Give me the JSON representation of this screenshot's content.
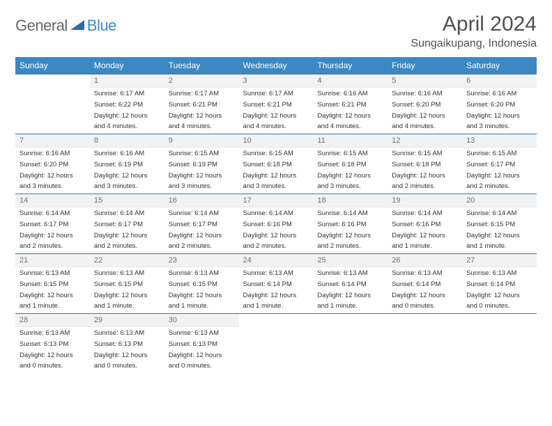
{
  "logo": {
    "part1": "General",
    "part2": "Blue"
  },
  "title": "April 2024",
  "location": "Sungaikupang, Indonesia",
  "header_bg": "#3b88c3",
  "header_fg": "#ffffff",
  "rule_color": "#3b76a8",
  "daybar_bg": "#f1f2f3",
  "days": [
    "Sunday",
    "Monday",
    "Tuesday",
    "Wednesday",
    "Thursday",
    "Friday",
    "Saturday"
  ],
  "weeks": [
    [
      {
        "n": "",
        "sunrise": "",
        "sunset": "",
        "daylight1": "",
        "daylight2": "",
        "empty": true
      },
      {
        "n": "1",
        "sunrise": "Sunrise: 6:17 AM",
        "sunset": "Sunset: 6:22 PM",
        "daylight1": "Daylight: 12 hours",
        "daylight2": "and 4 minutes."
      },
      {
        "n": "2",
        "sunrise": "Sunrise: 6:17 AM",
        "sunset": "Sunset: 6:21 PM",
        "daylight1": "Daylight: 12 hours",
        "daylight2": "and 4 minutes."
      },
      {
        "n": "3",
        "sunrise": "Sunrise: 6:17 AM",
        "sunset": "Sunset: 6:21 PM",
        "daylight1": "Daylight: 12 hours",
        "daylight2": "and 4 minutes."
      },
      {
        "n": "4",
        "sunrise": "Sunrise: 6:16 AM",
        "sunset": "Sunset: 6:21 PM",
        "daylight1": "Daylight: 12 hours",
        "daylight2": "and 4 minutes."
      },
      {
        "n": "5",
        "sunrise": "Sunrise: 6:16 AM",
        "sunset": "Sunset: 6:20 PM",
        "daylight1": "Daylight: 12 hours",
        "daylight2": "and 4 minutes."
      },
      {
        "n": "6",
        "sunrise": "Sunrise: 6:16 AM",
        "sunset": "Sunset: 6:20 PM",
        "daylight1": "Daylight: 12 hours",
        "daylight2": "and 3 minutes."
      }
    ],
    [
      {
        "n": "7",
        "sunrise": "Sunrise: 6:16 AM",
        "sunset": "Sunset: 6:20 PM",
        "daylight1": "Daylight: 12 hours",
        "daylight2": "and 3 minutes."
      },
      {
        "n": "8",
        "sunrise": "Sunrise: 6:16 AM",
        "sunset": "Sunset: 6:19 PM",
        "daylight1": "Daylight: 12 hours",
        "daylight2": "and 3 minutes."
      },
      {
        "n": "9",
        "sunrise": "Sunrise: 6:15 AM",
        "sunset": "Sunset: 6:19 PM",
        "daylight1": "Daylight: 12 hours",
        "daylight2": "and 3 minutes."
      },
      {
        "n": "10",
        "sunrise": "Sunrise: 6:15 AM",
        "sunset": "Sunset: 6:18 PM",
        "daylight1": "Daylight: 12 hours",
        "daylight2": "and 3 minutes."
      },
      {
        "n": "11",
        "sunrise": "Sunrise: 6:15 AM",
        "sunset": "Sunset: 6:18 PM",
        "daylight1": "Daylight: 12 hours",
        "daylight2": "and 3 minutes."
      },
      {
        "n": "12",
        "sunrise": "Sunrise: 6:15 AM",
        "sunset": "Sunset: 6:18 PM",
        "daylight1": "Daylight: 12 hours",
        "daylight2": "and 2 minutes."
      },
      {
        "n": "13",
        "sunrise": "Sunrise: 6:15 AM",
        "sunset": "Sunset: 6:17 PM",
        "daylight1": "Daylight: 12 hours",
        "daylight2": "and 2 minutes."
      }
    ],
    [
      {
        "n": "14",
        "sunrise": "Sunrise: 6:14 AM",
        "sunset": "Sunset: 6:17 PM",
        "daylight1": "Daylight: 12 hours",
        "daylight2": "and 2 minutes."
      },
      {
        "n": "15",
        "sunrise": "Sunrise: 6:14 AM",
        "sunset": "Sunset: 6:17 PM",
        "daylight1": "Daylight: 12 hours",
        "daylight2": "and 2 minutes."
      },
      {
        "n": "16",
        "sunrise": "Sunrise: 6:14 AM",
        "sunset": "Sunset: 6:17 PM",
        "daylight1": "Daylight: 12 hours",
        "daylight2": "and 2 minutes."
      },
      {
        "n": "17",
        "sunrise": "Sunrise: 6:14 AM",
        "sunset": "Sunset: 6:16 PM",
        "daylight1": "Daylight: 12 hours",
        "daylight2": "and 2 minutes."
      },
      {
        "n": "18",
        "sunrise": "Sunrise: 6:14 AM",
        "sunset": "Sunset: 6:16 PM",
        "daylight1": "Daylight: 12 hours",
        "daylight2": "and 2 minutes."
      },
      {
        "n": "19",
        "sunrise": "Sunrise: 6:14 AM",
        "sunset": "Sunset: 6:16 PM",
        "daylight1": "Daylight: 12 hours",
        "daylight2": "and 1 minute."
      },
      {
        "n": "20",
        "sunrise": "Sunrise: 6:14 AM",
        "sunset": "Sunset: 6:15 PM",
        "daylight1": "Daylight: 12 hours",
        "daylight2": "and 1 minute."
      }
    ],
    [
      {
        "n": "21",
        "sunrise": "Sunrise: 6:13 AM",
        "sunset": "Sunset: 6:15 PM",
        "daylight1": "Daylight: 12 hours",
        "daylight2": "and 1 minute."
      },
      {
        "n": "22",
        "sunrise": "Sunrise: 6:13 AM",
        "sunset": "Sunset: 6:15 PM",
        "daylight1": "Daylight: 12 hours",
        "daylight2": "and 1 minute."
      },
      {
        "n": "23",
        "sunrise": "Sunrise: 6:13 AM",
        "sunset": "Sunset: 6:15 PM",
        "daylight1": "Daylight: 12 hours",
        "daylight2": "and 1 minute."
      },
      {
        "n": "24",
        "sunrise": "Sunrise: 6:13 AM",
        "sunset": "Sunset: 6:14 PM",
        "daylight1": "Daylight: 12 hours",
        "daylight2": "and 1 minute."
      },
      {
        "n": "25",
        "sunrise": "Sunrise: 6:13 AM",
        "sunset": "Sunset: 6:14 PM",
        "daylight1": "Daylight: 12 hours",
        "daylight2": "and 1 minute."
      },
      {
        "n": "26",
        "sunrise": "Sunrise: 6:13 AM",
        "sunset": "Sunset: 6:14 PM",
        "daylight1": "Daylight: 12 hours",
        "daylight2": "and 0 minutes."
      },
      {
        "n": "27",
        "sunrise": "Sunrise: 6:13 AM",
        "sunset": "Sunset: 6:14 PM",
        "daylight1": "Daylight: 12 hours",
        "daylight2": "and 0 minutes."
      }
    ],
    [
      {
        "n": "28",
        "sunrise": "Sunrise: 6:13 AM",
        "sunset": "Sunset: 6:13 PM",
        "daylight1": "Daylight: 12 hours",
        "daylight2": "and 0 minutes."
      },
      {
        "n": "29",
        "sunrise": "Sunrise: 6:13 AM",
        "sunset": "Sunset: 6:13 PM",
        "daylight1": "Daylight: 12 hours",
        "daylight2": "and 0 minutes."
      },
      {
        "n": "30",
        "sunrise": "Sunrise: 6:13 AM",
        "sunset": "Sunset: 6:13 PM",
        "daylight1": "Daylight: 12 hours",
        "daylight2": "and 0 minutes."
      },
      {
        "n": "",
        "sunrise": "",
        "sunset": "",
        "daylight1": "",
        "daylight2": "",
        "empty": true
      },
      {
        "n": "",
        "sunrise": "",
        "sunset": "",
        "daylight1": "",
        "daylight2": "",
        "empty": true
      },
      {
        "n": "",
        "sunrise": "",
        "sunset": "",
        "daylight1": "",
        "daylight2": "",
        "empty": true
      },
      {
        "n": "",
        "sunrise": "",
        "sunset": "",
        "daylight1": "",
        "daylight2": "",
        "empty": true
      }
    ]
  ]
}
